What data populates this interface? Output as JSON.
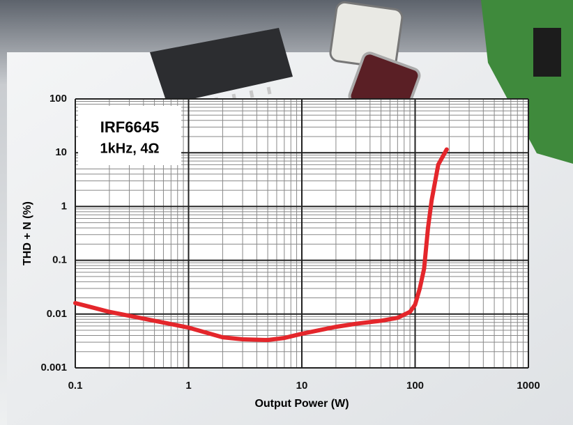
{
  "chart_data": {
    "type": "line",
    "annotation_lines": [
      "IRF6645",
      "1kHz, 4Ω"
    ],
    "xlabel": "Output Power (W)",
    "ylabel": "THD + N (%)",
    "x": [
      0.1,
      0.2,
      0.5,
      1,
      2,
      3,
      5,
      7,
      10,
      20,
      30,
      50,
      70,
      90,
      100,
      110,
      120,
      130,
      140,
      160,
      190
    ],
    "series": [
      {
        "name": "IRF6645",
        "color": "#e4262b",
        "values": [
          0.016,
          0.011,
          0.0075,
          0.0056,
          0.0037,
          0.0034,
          0.0033,
          0.0036,
          0.0043,
          0.0058,
          0.0066,
          0.0075,
          0.0085,
          0.011,
          0.015,
          0.03,
          0.07,
          0.4,
          1.3,
          6,
          11.5
        ]
      }
    ],
    "xlim": [
      0.1,
      1000
    ],
    "ylim": [
      0.001,
      100
    ],
    "xticks": [
      0.1,
      1,
      10,
      100,
      1000
    ],
    "yticks": [
      0.001,
      0.01,
      0.1,
      1,
      10,
      100
    ],
    "xscale": "log",
    "yscale": "log",
    "grid": true
  }
}
